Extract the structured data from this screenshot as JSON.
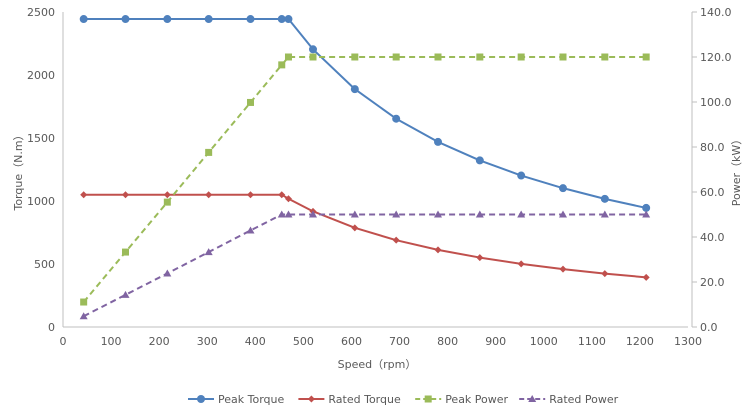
{
  "chart_data": {
    "type": "line",
    "title": "",
    "xlabel": "Speed（rpm）",
    "ylabel": "Torque（N.m）",
    "y2label": "Power（kW）",
    "xlim": [
      0,
      1300
    ],
    "ylim": [
      0,
      2500
    ],
    "y2lim": [
      0,
      140
    ],
    "xticks": [
      "0",
      "100",
      "200",
      "300",
      "400",
      "500",
      "600",
      "700",
      "800",
      "900",
      "1000",
      "1100",
      "1200",
      "1300"
    ],
    "yticks": [
      "0",
      "500",
      "1000",
      "1500",
      "2000",
      "2500"
    ],
    "y2ticks": [
      "0.0",
      "20.0",
      "40.0",
      "60.0",
      "80.0",
      "100.0",
      "120.0",
      "140.0"
    ],
    "grid": false,
    "legend_position": "bottom",
    "x": [
      43,
      130,
      217,
      303,
      390,
      455,
      469,
      520,
      607,
      693,
      780,
      867,
      953,
      1040,
      1127,
      1213
    ],
    "series": [
      {
        "name": "Peak Torque",
        "axis": "left",
        "color": "#4f81bd",
        "dash": false,
        "marker": "circle",
        "values": [
          2444,
          2444,
          2444,
          2444,
          2444,
          2444,
          2444,
          2204,
          1888,
          1653,
          1469,
          1322,
          1202,
          1102,
          1017,
          945
        ]
      },
      {
        "name": "Rated Torque",
        "axis": "left",
        "color": "#c0504d",
        "dash": false,
        "marker": "diamond",
        "values": [
          1050,
          1050,
          1050,
          1050,
          1050,
          1050,
          1018,
          918,
          787,
          689,
          612,
          551,
          501,
          459,
          424,
          394
        ]
      },
      {
        "name": "Peak Power",
        "axis": "right",
        "color": "#9bbb59",
        "dash": true,
        "marker": "square",
        "values": [
          11.1,
          33.3,
          55.5,
          77.6,
          99.8,
          116.5,
          120.0,
          120.0,
          120.0,
          120.0,
          120.0,
          120.0,
          120.0,
          120.0,
          120.0,
          120.0
        ]
      },
      {
        "name": "Rated Power",
        "axis": "right",
        "color": "#8064a2",
        "dash": true,
        "marker": "triangle",
        "values": [
          4.8,
          14.3,
          23.8,
          33.3,
          42.9,
          50.0,
          50.0,
          50.0,
          50.0,
          50.0,
          50.0,
          50.0,
          50.0,
          50.0,
          50.0,
          50.0
        ]
      }
    ]
  }
}
